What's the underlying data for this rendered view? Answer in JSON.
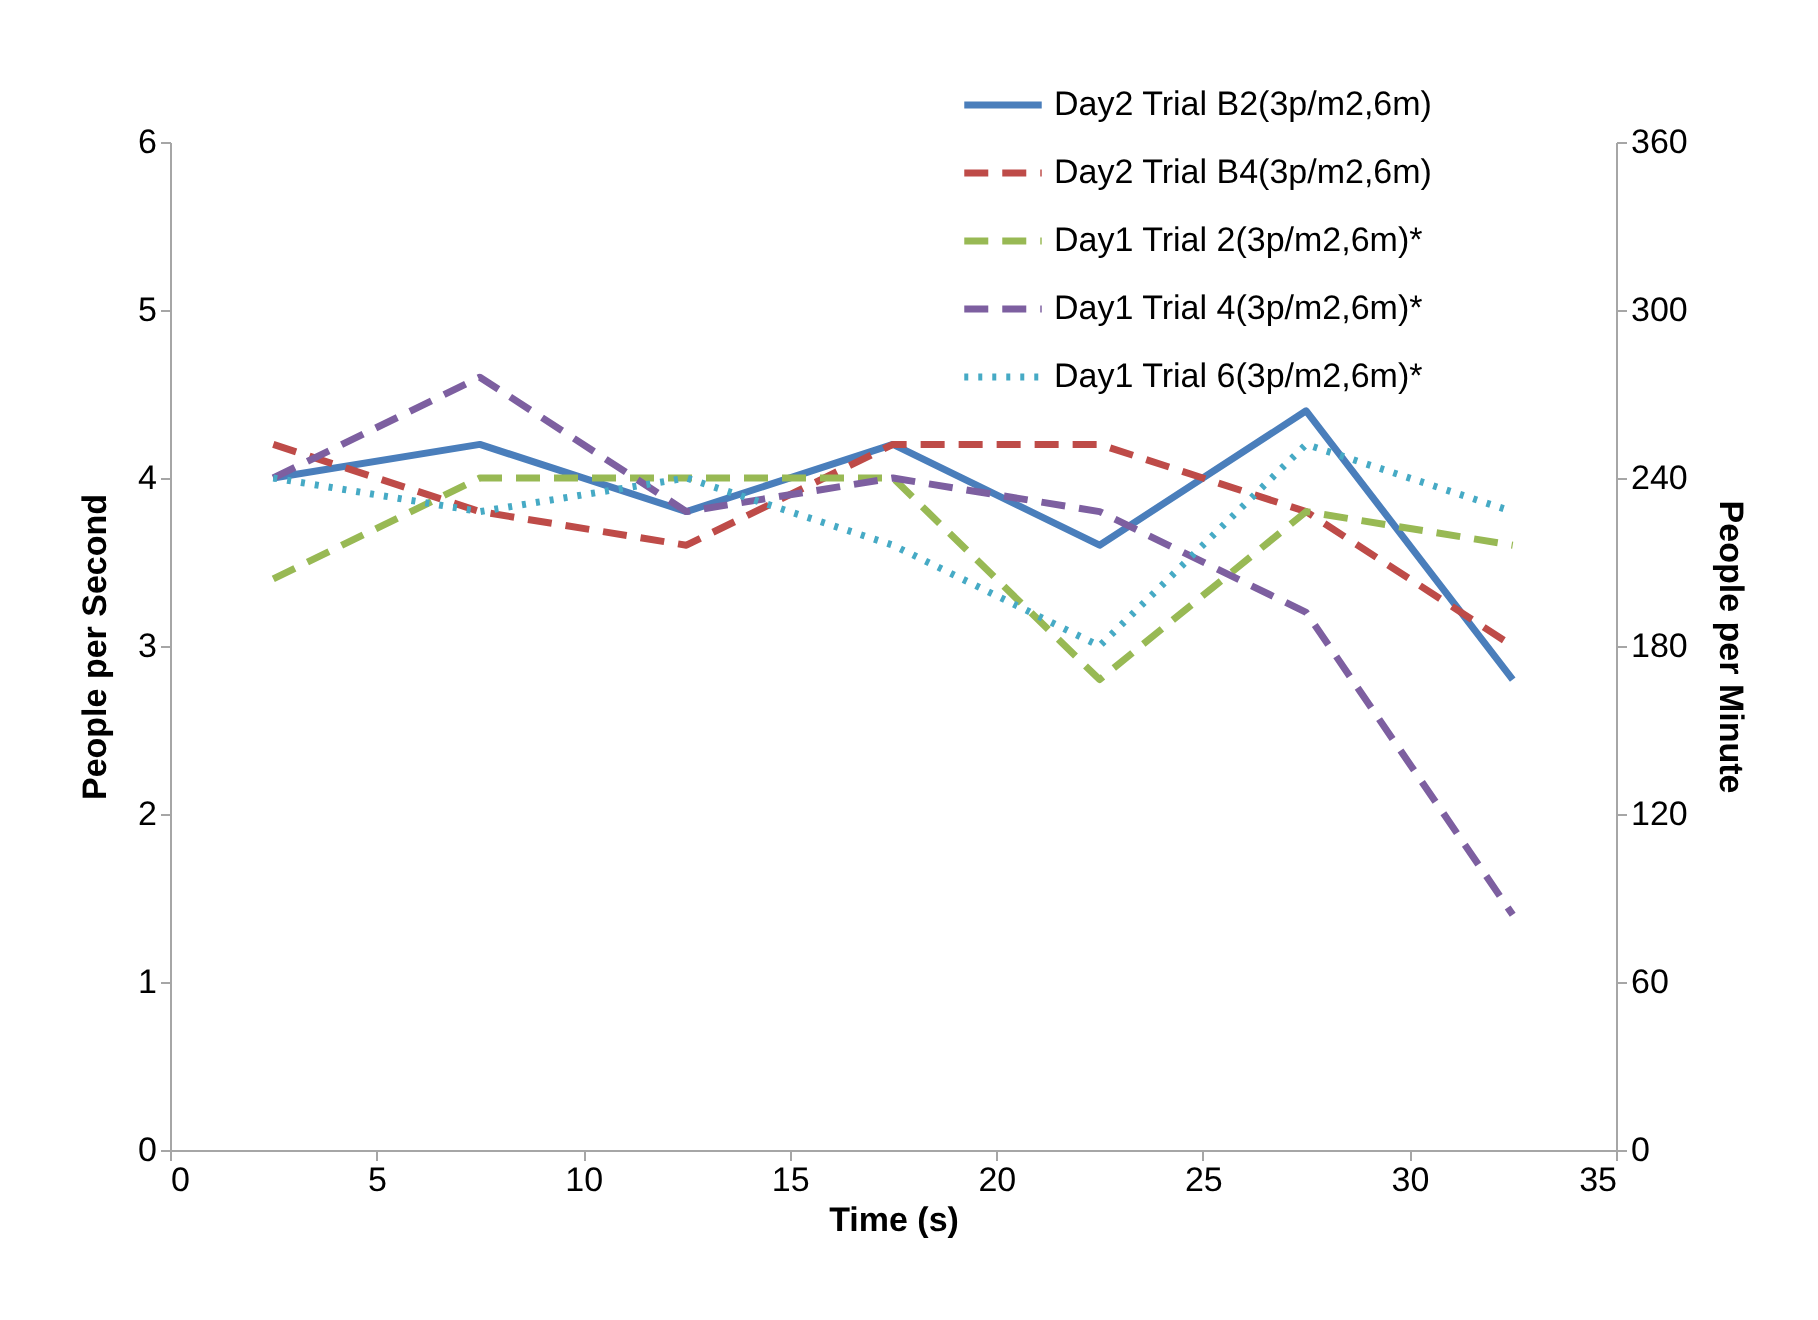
{
  "chart_data": {
    "type": "line",
    "xlabel": "Time (s)",
    "ylabel": "People per Second",
    "y2label": "People per Minute",
    "x": [
      2.5,
      7.5,
      12.5,
      17.5,
      22.5,
      27.5,
      32.5
    ],
    "series": [
      {
        "name": "Day2 Trial B2(3p/m2,6m)",
        "color": "#4a7ebb",
        "line_style": "solid",
        "values": [
          4.0,
          4.2,
          3.8,
          4.2,
          3.6,
          4.4,
          2.8
        ]
      },
      {
        "name": "Day2 Trial B4(3p/m2,6m)",
        "color": "#be4b48",
        "line_style": "dashed",
        "values": [
          4.2,
          3.8,
          3.6,
          4.2,
          4.2,
          3.8,
          3.0
        ]
      },
      {
        "name": "Day1 Trial 2(3p/m2,6m)*",
        "color": "#98b954",
        "line_style": "dashed",
        "values": [
          3.4,
          4.0,
          4.0,
          4.0,
          2.8,
          3.8,
          3.6
        ]
      },
      {
        "name": "Day1 Trial 4(3p/m2,6m)*",
        "color": "#7d5fa0",
        "line_style": "dashed",
        "values": [
          4.0,
          4.6,
          3.8,
          4.0,
          3.8,
          3.2,
          1.4
        ]
      },
      {
        "name": "Day1 Trial 6(3p/m2,6m)*",
        "color": "#46aac5",
        "line_style": "dotted",
        "values": [
          4.0,
          3.8,
          4.0,
          3.6,
          3.0,
          4.2,
          3.8
        ]
      }
    ],
    "xlim": [
      0,
      35
    ],
    "xticks": [
      0,
      5,
      10,
      15,
      20,
      25,
      30,
      35
    ],
    "ylim": [
      0,
      6
    ],
    "yticks": [
      0,
      1,
      2,
      3,
      4,
      5,
      6
    ],
    "y2lim": [
      0,
      360
    ],
    "y2ticks": [
      0,
      60,
      120,
      180,
      240,
      300,
      360
    ],
    "grid": false,
    "legend": "top right"
  }
}
